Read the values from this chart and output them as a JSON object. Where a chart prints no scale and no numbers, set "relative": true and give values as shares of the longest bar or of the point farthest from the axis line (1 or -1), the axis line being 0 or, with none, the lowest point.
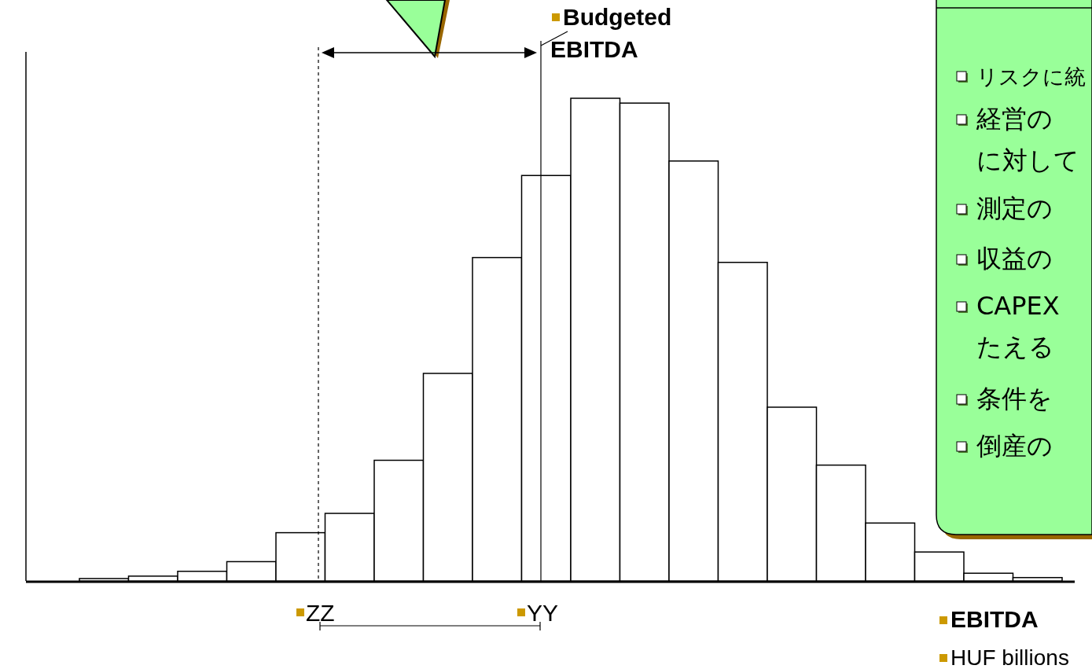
{
  "chart_data": {
    "type": "bar",
    "relative": true,
    "categories": [
      null,
      null,
      null,
      null,
      null,
      null,
      null,
      null,
      null,
      null,
      null,
      null,
      null,
      null,
      null,
      null,
      null,
      null,
      null,
      null
    ],
    "values": [
      0.005,
      0.01,
      0.02,
      0.04,
      0.1,
      0.14,
      0.25,
      0.43,
      0.67,
      0.84,
      1,
      0.99,
      0.87,
      0.66,
      0.36,
      0.24,
      0.12,
      0.06,
      0.016,
      0.007
    ],
    "color": "#ffffff",
    "xlabel": "EBITDA",
    "annotations": [
      "Budgeted EBITDA",
      "HUF billions",
      "ZZ",
      "YY",
      "リスクに統",
      "経営の",
      "に対して",
      "測定の",
      "収益の",
      "CAPEX",
      "たえる",
      "条件を",
      "倒産の"
    ]
  }
}
